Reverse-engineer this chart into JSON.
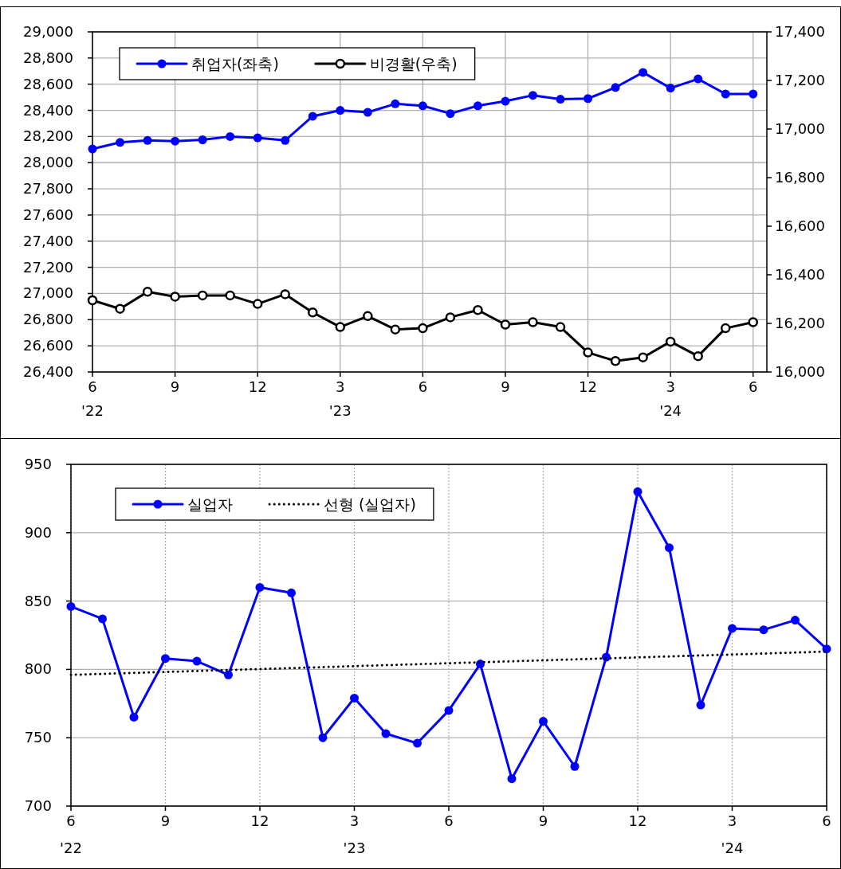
{
  "chart_data": [
    {
      "type": "line",
      "x": [
        "2022-06",
        "2022-07",
        "2022-08",
        "2022-09",
        "2022-10",
        "2022-11",
        "2022-12",
        "2023-01",
        "2023-02",
        "2023-03",
        "2023-04",
        "2023-05",
        "2023-06",
        "2023-07",
        "2023-08",
        "2023-09",
        "2023-10",
        "2023-11",
        "2023-12",
        "2024-01",
        "2024-02",
        "2024-03",
        "2024-04",
        "2024-05",
        "2024-06"
      ],
      "series": [
        {
          "name": "취업자(좌축)",
          "color": "#0000ff",
          "marker": "circle",
          "values": [
            28105,
            28155,
            28170,
            28165,
            28175,
            28200,
            28190,
            28170,
            28355,
            28400,
            28385,
            28450,
            28435,
            28375,
            28435,
            28470,
            28515,
            28485,
            28490,
            28575,
            28690,
            28570,
            28640,
            28525,
            28525
          ]
        },
        {
          "name": "비경활(우축)",
          "color": "#000000",
          "marker": "circle",
          "axis": "y2",
          "values": [
            16295,
            16260,
            16330,
            16310,
            16315,
            16315,
            16280,
            16320,
            16245,
            16185,
            16230,
            16175,
            16180,
            16225,
            16255,
            16195,
            16205,
            16185,
            16080,
            16045,
            16060,
            16125,
            16065,
            16180,
            16205
          ]
        }
      ],
      "xlim": [
        "2022-06",
        "2024-06-16"
      ],
      "xticks": [
        {
          "value": "2022-06",
          "label": "6\n'22"
        },
        {
          "value": "2022-09",
          "label": "9"
        },
        {
          "value": "2022-12",
          "label": "12"
        },
        {
          "value": "2023-03",
          "label": "3\n'23"
        },
        {
          "value": "2023-06",
          "label": "6"
        },
        {
          "value": "2023-09",
          "label": "9"
        },
        {
          "value": "2023-12",
          "label": "12"
        },
        {
          "value": "2024-03",
          "label": "3\n'24"
        },
        {
          "value": "2024-06",
          "label": "6"
        }
      ],
      "ylim": [
        26400,
        29000
      ],
      "yticks": [
        {
          "value": 26400,
          "label": "26,400"
        },
        {
          "value": 26600,
          "label": "26,600"
        },
        {
          "value": 26800,
          "label": "26,800"
        },
        {
          "value": 27000,
          "label": "27,000"
        },
        {
          "value": 27200,
          "label": "27,200"
        },
        {
          "value": 27400,
          "label": "27,400"
        },
        {
          "value": 27600,
          "label": "27,600"
        },
        {
          "value": 27800,
          "label": "27,800"
        },
        {
          "value": 28000,
          "label": "28,000"
        },
        {
          "value": 28200,
          "label": "28,200"
        },
        {
          "value": 28400,
          "label": "28,400"
        },
        {
          "value": 28600,
          "label": "28,600"
        },
        {
          "value": 28800,
          "label": "28,800"
        },
        {
          "value": 29000,
          "label": "29,000"
        }
      ],
      "y2lim": [
        16000,
        17400
      ],
      "y2ticks": [
        {
          "value": 16000,
          "label": "16,000"
        },
        {
          "value": 16200,
          "label": "16,200"
        },
        {
          "value": 16400,
          "label": "16,400"
        },
        {
          "value": 16600,
          "label": "16,600"
        },
        {
          "value": 16800,
          "label": "16,800"
        },
        {
          "value": 17000,
          "label": "17,000"
        },
        {
          "value": 17200,
          "label": "17,200"
        },
        {
          "value": 17400,
          "label": "17,400"
        }
      ],
      "grid": true,
      "legend": "top left",
      "line_style": "solid"
    },
    {
      "type": "line",
      "x": [
        "2022-06",
        "2022-07",
        "2022-08",
        "2022-09",
        "2022-10",
        "2022-11",
        "2022-12",
        "2023-01",
        "2023-02",
        "2023-03",
        "2023-04",
        "2023-05",
        "2023-06",
        "2023-07",
        "2023-08",
        "2023-09",
        "2023-10",
        "2023-11",
        "2023-12",
        "2024-01",
        "2024-02",
        "2024-03",
        "2024-04",
        "2024-05",
        "2024-06"
      ],
      "series": [
        {
          "name": "실업자",
          "color": "#0000ff",
          "marker": "circle",
          "values": [
            846,
            837,
            765,
            808,
            806,
            796,
            860,
            856,
            750,
            779,
            753,
            746,
            770,
            804,
            720,
            762,
            729,
            809,
            930,
            889,
            774,
            830,
            829,
            836,
            815
          ]
        },
        {
          "name": "선형 (실업자)",
          "color": "#000000",
          "marker": "none",
          "line_style": "dotted",
          "x": [
            "2022-06",
            "2024-06"
          ],
          "values": [
            796,
            813
          ]
        }
      ],
      "xlim": [
        "2022-06",
        "2024-06"
      ],
      "xticks": [
        {
          "value": "2022-06",
          "label": "6\n'22"
        },
        {
          "value": "2022-09",
          "label": "9"
        },
        {
          "value": "2022-12",
          "label": "12"
        },
        {
          "value": "2023-03",
          "label": "3\n'23"
        },
        {
          "value": "2023-06",
          "label": "6"
        },
        {
          "value": "2023-09",
          "label": "9"
        },
        {
          "value": "2023-12",
          "label": "12"
        },
        {
          "value": "2024-03",
          "label": "3\n'24"
        },
        {
          "value": "2024-06",
          "label": "6"
        }
      ],
      "ylim": [
        700,
        950
      ],
      "yticks": [
        700,
        750,
        800,
        850,
        900,
        950
      ],
      "grid": true,
      "legend": "top left",
      "line_style": "solid"
    }
  ]
}
